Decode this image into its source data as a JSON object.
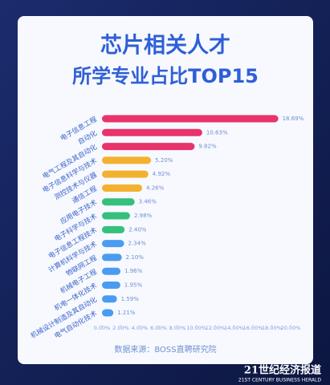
{
  "chart_data": {
    "type": "bar",
    "orientation": "horizontal",
    "title": "芯片相关人才",
    "subtitle": "所学专业占比TOP15",
    "categories": [
      "电子信息工程",
      "自动化",
      "电气工程及其自动化",
      "电子信息科学与技术",
      "测控技术与仪器",
      "通信工程",
      "应用电子技术",
      "电子科学与技术",
      "电子信息工程技术",
      "计算机科学与技术",
      "物联网工程",
      "机械电子工程",
      "机电一体化技术",
      "机械设计制造及其自动化",
      "电气自动化技术"
    ],
    "values": [
      18.69,
      10.63,
      9.82,
      5.2,
      4.92,
      4.26,
      3.46,
      2.98,
      2.4,
      2.34,
      2.1,
      1.96,
      1.95,
      1.59,
      1.21
    ],
    "value_labels": [
      "18.69%",
      "10.63%",
      "9.82%",
      "5.20%",
      "4.92%",
      "4.26%",
      "3.46%",
      "2.98%",
      "2.40%",
      "2.34%",
      "2.10%",
      "1.96%",
      "1.95%",
      "1.59%",
      "1.21%"
    ],
    "colors": [
      "#e8336b",
      "#e8336b",
      "#e8336b",
      "#f3b12f",
      "#f3b12f",
      "#f3b12f",
      "#35c07c",
      "#35c07c",
      "#35c07c",
      "#4a9cf0",
      "#4a9cf0",
      "#4a9cf0",
      "#4a9cf0",
      "#4a9cf0",
      "#4a9cf0"
    ],
    "xlim": [
      0,
      20
    ],
    "xticks": [
      {
        "value": 0,
        "label": "0.00%"
      },
      {
        "value": 2,
        "label": "2.00%"
      },
      {
        "value": 4,
        "label": "4.00%"
      },
      {
        "value": 6,
        "label": "6.00%"
      },
      {
        "value": 8,
        "label": "8.00%"
      },
      {
        "value": 10,
        "label": "10.00%"
      },
      {
        "value": 12,
        "label": "12.00%"
      },
      {
        "value": 14,
        "label": "14.00%"
      },
      {
        "value": 16,
        "label": "16.00%"
      },
      {
        "value": 18,
        "label": "18.00%"
      },
      {
        "value": 20,
        "label": "20.00%"
      }
    ],
    "source": "数据来源：BOSS直聘研究院",
    "brand": "21世纪经济报道",
    "brand_en": "21ST CENTURY BUSINESS HERALD"
  }
}
